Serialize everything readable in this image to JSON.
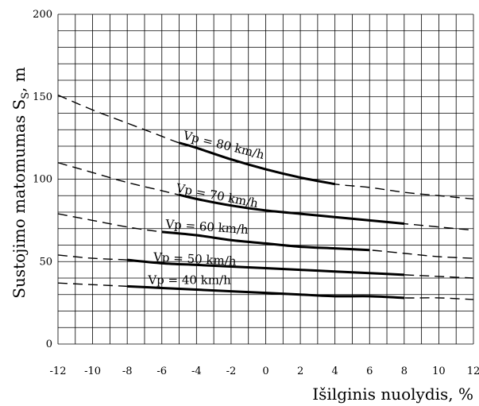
{
  "chart_data": {
    "type": "line",
    "title": "",
    "xlabel": "Išilginis nuolydis,  %",
    "ylabel_main": "Sustojimo matomumas S",
    "ylabel_sub": "S",
    "ylabel_unit": ",  m",
    "xlim": [
      -12,
      12
    ],
    "ylim": [
      0,
      200
    ],
    "x_ticks": [
      -12,
      -10,
      -8,
      -6,
      -4,
      -2,
      0,
      2,
      4,
      6,
      8,
      10,
      12
    ],
    "y_ticks": [
      0,
      50,
      100,
      150,
      200
    ],
    "grid": true,
    "legend": "none",
    "series": [
      {
        "name": "Vp = 80 km/h",
        "solid_range": [
          -5,
          4
        ],
        "x": [
          -12,
          -10,
          -8,
          -6,
          -5,
          -4,
          -2,
          0,
          2,
          4,
          6,
          8,
          10,
          12
        ],
        "y": [
          151,
          142,
          134,
          126,
          122,
          119,
          112,
          106,
          101,
          97,
          95,
          92,
          90,
          88
        ]
      },
      {
        "name": "Vp = 70 km/h",
        "solid_range": [
          -5,
          8
        ],
        "x": [
          -12,
          -10,
          -8,
          -6,
          -4,
          -2,
          0,
          2,
          4,
          6,
          8,
          10,
          12
        ],
        "y": [
          110,
          104,
          98,
          93,
          88,
          84,
          81,
          79,
          77,
          75,
          73,
          71,
          69
        ]
      },
      {
        "name": "Vp = 60 km/h",
        "solid_range": [
          -6,
          6
        ],
        "x": [
          -12,
          -10,
          -8,
          -6,
          -4,
          -2,
          0,
          2,
          4,
          6,
          8,
          10,
          12
        ],
        "y": [
          79,
          75,
          71,
          68,
          66,
          63,
          61,
          59,
          58,
          57,
          55,
          53,
          52
        ]
      },
      {
        "name": "Vp = 50 km/h",
        "solid_range": [
          -8,
          8
        ],
        "x": [
          -12,
          -10,
          -8,
          -6,
          -4,
          -2,
          0,
          2,
          4,
          6,
          8,
          10,
          12
        ],
        "y": [
          54,
          52,
          51,
          49,
          48,
          47,
          46,
          45,
          44,
          43,
          42,
          41,
          40
        ]
      },
      {
        "name": "Vp = 40 km/h",
        "solid_range": [
          -8,
          8
        ],
        "x": [
          -12,
          -10,
          -8,
          -6,
          -4,
          -2,
          0,
          2,
          4,
          6,
          8,
          10,
          12
        ],
        "y": [
          37,
          36,
          35,
          34,
          33,
          32,
          31,
          30,
          29,
          29,
          28,
          28,
          27
        ]
      }
    ]
  }
}
